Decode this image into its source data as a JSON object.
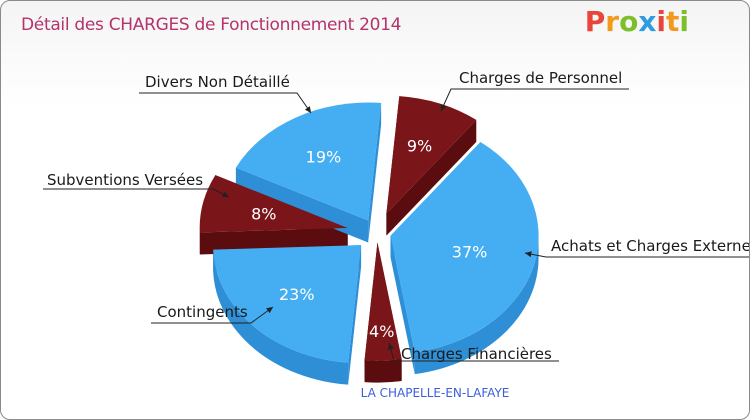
{
  "title": "Détail des CHARGES de Fonctionnement 2014",
  "subtitle": "LA CHAPELLE-EN-LAFAYE",
  "logo": {
    "text": "Proxiti",
    "letters": [
      {
        "ch": "P",
        "color": "#e8453c"
      },
      {
        "ch": "r",
        "color": "#f39a1e"
      },
      {
        "ch": "o",
        "color": "#7cbf2a"
      },
      {
        "ch": "x",
        "color": "#2f9be0"
      },
      {
        "ch": "i",
        "color": "#e8453c"
      },
      {
        "ch": "t",
        "color": "#f39a1e"
      },
      {
        "ch": "i",
        "color": "#7cbf2a"
      }
    ]
  },
  "colors": {
    "blue_top": "#45aef3",
    "blue_side": "#2f8fd6",
    "red_top": "#7a1519",
    "red_side": "#5a0c0f"
  },
  "chart_data": {
    "type": "pie",
    "title": "Détail des CHARGES de Fonctionnement 2014",
    "slices": [
      {
        "label": "Charges de Personnel",
        "value": 9,
        "display": "9%",
        "color": "red"
      },
      {
        "label": "Achats et Charges Externes",
        "value": 37,
        "display": "37%",
        "color": "blue"
      },
      {
        "label": "Charges Financières",
        "value": 4,
        "display": "4%",
        "color": "red"
      },
      {
        "label": "Contingents",
        "value": 23,
        "display": "23%",
        "color": "blue"
      },
      {
        "label": "Subventions Versées",
        "value": 8,
        "display": "8%",
        "color": "red"
      },
      {
        "label": "Divers Non Détaillé",
        "value": 19,
        "display": "19%",
        "color": "blue"
      }
    ]
  }
}
